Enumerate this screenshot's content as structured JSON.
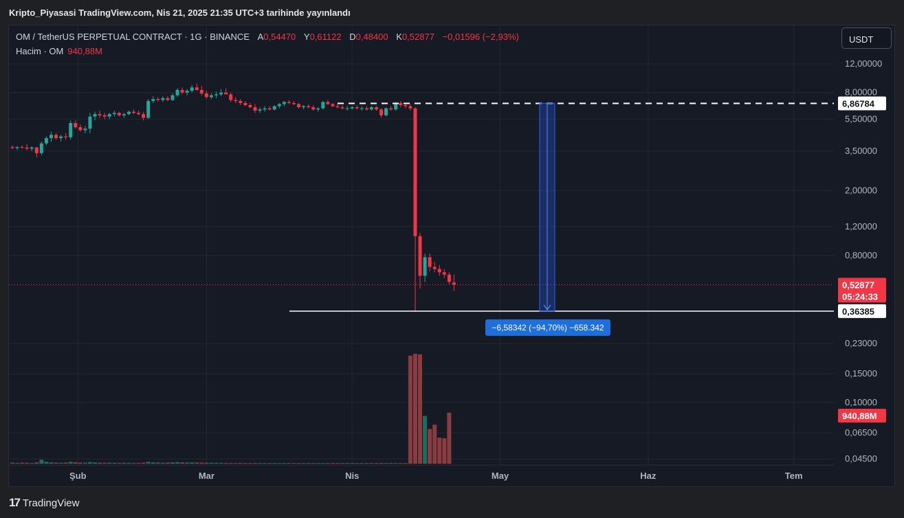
{
  "header": {
    "publication_note": "Kripto_Piyasasi TradingView.com, Nis 21, 2025 21:35 UTC+3 tarihinde yayınlandı"
  },
  "legend": {
    "symbol": "OM / TetherUS PERPETUAL CONTRACT · 1G · BINANCE",
    "open_label": "A",
    "open": "0,54470",
    "high_label": "Y",
    "high": "0,61122",
    "low_label": "D",
    "low": "0,48400",
    "close_label": "K",
    "close": "0,52877",
    "change": "−0,01596 (−2,93%)",
    "volume_label": "Hacim · OM",
    "volume": "940,88M"
  },
  "toolbar": {
    "currency_label": "USDT"
  },
  "footer": {
    "brand": "TradingView",
    "logo_glyph": "17"
  },
  "colors": {
    "up": "#26a69a",
    "down": "#f23645",
    "measure": "#2962ff",
    "measure_label_bg": "#1e6fd9"
  },
  "chart_data": {
    "type": "candlestick",
    "scale": "log",
    "currency": "USDT",
    "grid": true,
    "price_axis_ticks": [
      "12,00000",
      "8,00000",
      "5,50000",
      "3,50000",
      "2,00000",
      "1,20000",
      "0,80000",
      "0,23000",
      "0,15000",
      "0,10000",
      "0,06500",
      "0,04500"
    ],
    "price_axis_values": [
      12,
      8,
      5.5,
      3.5,
      2.0,
      1.2,
      0.8,
      0.23,
      0.15,
      0.1,
      0.065,
      0.045
    ],
    "time_axis_labels": [
      "Şub",
      "Mar",
      "Nis",
      "May",
      "Haz",
      "Tem"
    ],
    "price_labels": {
      "last_price": "0,52877",
      "countdown": "05:24:33",
      "upper_level": "6,86784",
      "lower_level": "0,36385",
      "volume": "940,88M"
    },
    "levels": {
      "upper": 6.86784,
      "lower": 0.36385,
      "last": 0.52877
    },
    "measure": {
      "label": "−6,58342 (−94,70%) −658.342",
      "from": 6.86784,
      "to": 0.36385
    },
    "candles": [
      [
        3.7,
        3.78,
        3.6,
        3.65
      ],
      [
        3.65,
        3.75,
        3.55,
        3.7
      ],
      [
        3.7,
        3.8,
        3.62,
        3.68
      ],
      [
        3.68,
        3.85,
        3.55,
        3.62
      ],
      [
        3.62,
        3.75,
        3.5,
        3.68
      ],
      [
        3.68,
        3.72,
        3.2,
        3.4
      ],
      [
        3.4,
        4.0,
        3.3,
        3.9
      ],
      [
        3.9,
        4.3,
        3.8,
        4.2
      ],
      [
        4.2,
        4.6,
        4.0,
        4.4
      ],
      [
        4.4,
        4.5,
        4.1,
        4.2
      ],
      [
        4.2,
        4.4,
        4.0,
        4.3
      ],
      [
        4.3,
        4.5,
        4.1,
        4.25
      ],
      [
        4.25,
        5.4,
        4.1,
        5.2
      ],
      [
        5.2,
        5.4,
        4.8,
        4.9
      ],
      [
        4.9,
        5.1,
        4.6,
        4.7
      ],
      [
        4.7,
        5.0,
        4.5,
        4.8
      ],
      [
        4.8,
        6.0,
        4.5,
        5.7
      ],
      [
        5.7,
        6.1,
        5.4,
        5.9
      ],
      [
        5.9,
        6.2,
        5.6,
        5.8
      ],
      [
        5.8,
        6.0,
        5.5,
        5.7
      ],
      [
        5.7,
        6.0,
        5.5,
        5.9
      ],
      [
        5.9,
        6.2,
        5.7,
        6.0
      ],
      [
        6.0,
        6.1,
        5.7,
        5.8
      ],
      [
        5.8,
        6.0,
        5.6,
        5.9
      ],
      [
        5.9,
        6.2,
        5.8,
        6.1
      ],
      [
        6.1,
        6.3,
        5.9,
        6.0
      ],
      [
        6.0,
        6.2,
        5.8,
        5.9
      ],
      [
        5.9,
        6.1,
        5.4,
        5.6
      ],
      [
        5.6,
        7.3,
        5.5,
        7.1
      ],
      [
        7.1,
        7.6,
        6.9,
        7.3
      ],
      [
        7.3,
        7.5,
        7.0,
        7.2
      ],
      [
        7.2,
        7.6,
        7.0,
        7.4
      ],
      [
        7.4,
        7.6,
        7.1,
        7.2
      ],
      [
        7.2,
        7.9,
        7.1,
        7.7
      ],
      [
        7.7,
        8.5,
        7.5,
        8.3
      ],
      [
        8.3,
        8.6,
        7.8,
        8.0
      ],
      [
        8.0,
        8.4,
        7.7,
        8.2
      ],
      [
        8.2,
        8.9,
        8.0,
        8.6
      ],
      [
        8.6,
        9.1,
        8.2,
        8.3
      ],
      [
        8.3,
        8.8,
        7.7,
        7.9
      ],
      [
        7.9,
        8.2,
        7.3,
        7.5
      ],
      [
        7.5,
        7.9,
        7.3,
        7.7
      ],
      [
        7.7,
        8.1,
        7.4,
        7.8
      ],
      [
        7.8,
        8.4,
        7.6,
        8.0
      ],
      [
        8.0,
        8.5,
        7.8,
        7.8
      ],
      [
        7.8,
        8.0,
        7.0,
        7.2
      ],
      [
        7.2,
        7.5,
        6.9,
        7.1
      ],
      [
        7.1,
        7.3,
        6.7,
        6.9
      ],
      [
        6.9,
        7.1,
        6.6,
        6.7
      ],
      [
        6.7,
        6.9,
        6.4,
        6.5
      ],
      [
        6.5,
        6.8,
        6.0,
        6.2
      ],
      [
        6.2,
        6.5,
        6.0,
        6.3
      ],
      [
        6.3,
        6.6,
        6.1,
        6.4
      ],
      [
        6.4,
        6.6,
        6.2,
        6.3
      ],
      [
        6.3,
        6.7,
        6.2,
        6.6
      ],
      [
        6.6,
        6.9,
        6.4,
        6.8
      ],
      [
        6.8,
        7.1,
        6.6,
        7.0
      ],
      [
        7.0,
        7.2,
        6.8,
        6.9
      ],
      [
        6.9,
        7.1,
        6.7,
        6.8
      ],
      [
        6.8,
        6.9,
        6.4,
        6.5
      ],
      [
        6.5,
        6.7,
        6.3,
        6.6
      ],
      [
        6.6,
        6.8,
        6.4,
        6.5
      ],
      [
        6.5,
        6.7,
        6.2,
        6.3
      ],
      [
        6.3,
        6.5,
        6.1,
        6.4
      ],
      [
        6.4,
        7.1,
        6.3,
        7.0
      ],
      [
        7.0,
        7.2,
        6.7,
        6.8
      ],
      [
        6.8,
        6.9,
        6.5,
        6.6
      ],
      [
        6.6,
        6.8,
        6.4,
        6.5
      ],
      [
        6.5,
        6.7,
        6.3,
        6.4
      ],
      [
        6.4,
        6.6,
        6.2,
        6.4
      ],
      [
        6.4,
        6.6,
        6.3,
        6.5
      ],
      [
        6.5,
        6.7,
        6.3,
        6.4
      ],
      [
        6.4,
        6.6,
        6.2,
        6.4
      ],
      [
        6.4,
        6.6,
        6.2,
        6.3
      ],
      [
        6.3,
        6.6,
        6.2,
        6.5
      ],
      [
        6.5,
        6.6,
        6.2,
        6.3
      ],
      [
        6.3,
        6.4,
        5.6,
        5.8
      ],
      [
        5.8,
        6.5,
        5.7,
        6.4
      ],
      [
        6.4,
        6.6,
        6.2,
        6.3
      ],
      [
        6.3,
        7.0,
        6.2,
        6.9
      ],
      [
        6.9,
        7.1,
        6.5,
        6.7
      ],
      [
        6.7,
        6.9,
        6.4,
        6.6
      ],
      [
        6.6,
        6.8,
        6.2,
        6.4
      ],
      [
        6.4,
        6.5,
        0.36,
        1.05
      ],
      [
        1.05,
        1.1,
        0.5,
        0.6
      ],
      [
        0.6,
        0.82,
        0.55,
        0.78
      ],
      [
        0.78,
        0.82,
        0.64,
        0.68
      ],
      [
        0.68,
        0.73,
        0.63,
        0.66
      ],
      [
        0.66,
        0.7,
        0.6,
        0.63
      ],
      [
        0.63,
        0.66,
        0.58,
        0.61
      ],
      [
        0.61,
        0.63,
        0.53,
        0.55
      ],
      [
        0.545,
        0.611,
        0.484,
        0.529
      ]
    ],
    "volume_bars_M": [
      20,
      15,
      20,
      18,
      14,
      25,
      75,
      35,
      25,
      20,
      18,
      22,
      35,
      28,
      22,
      20,
      30,
      25,
      20,
      18,
      20,
      18,
      16,
      18,
      16,
      15,
      16,
      20,
      35,
      25,
      22,
      20,
      22,
      25,
      30,
      25,
      22,
      25,
      22,
      20,
      18,
      20,
      18,
      16,
      15,
      14,
      13,
      14,
      12,
      12,
      14,
      12,
      12,
      11,
      12,
      12,
      11,
      12,
      12,
      12,
      12,
      11,
      12,
      12,
      11,
      12,
      11,
      11,
      12,
      11,
      12,
      11,
      11,
      12,
      11,
      12,
      15,
      12,
      14,
      12,
      12,
      12,
      1990,
      2025,
      2015,
      880,
      640,
      720,
      480,
      470,
      940.88
    ]
  }
}
